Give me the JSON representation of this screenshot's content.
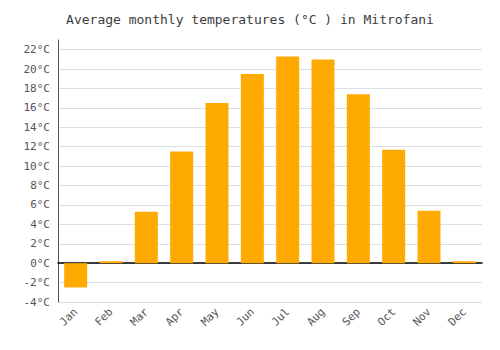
{
  "chart_data": {
    "type": "bar",
    "title": "Average monthly temperatures (°C ) in Mitrofani",
    "categories": [
      "Jan",
      "Feb",
      "Mar",
      "Apr",
      "May",
      "Jun",
      "Jul",
      "Aug",
      "Sep",
      "Oct",
      "Nov",
      "Dec"
    ],
    "values": [
      -2.5,
      0.2,
      5.3,
      11.5,
      16.5,
      19.5,
      21.3,
      21.0,
      17.4,
      11.7,
      5.4,
      0.2
    ],
    "color": "#FFAA00",
    "ylim": [
      -4,
      23
    ],
    "yticks": [
      {
        "value": -4,
        "label": "-4°C"
      },
      {
        "value": -2,
        "label": "-2°C"
      },
      {
        "value": 0,
        "label": "0°C"
      },
      {
        "value": 2,
        "label": "2°C"
      },
      {
        "value": 4,
        "label": "4°C"
      },
      {
        "value": 6,
        "label": "6°C"
      },
      {
        "value": 8,
        "label": "8°C"
      },
      {
        "value": 10,
        "label": "10°C"
      },
      {
        "value": 12,
        "label": "12°C"
      },
      {
        "value": 14,
        "label": "14°C"
      },
      {
        "value": 16,
        "label": "16°C"
      },
      {
        "value": 18,
        "label": "18°C"
      },
      {
        "value": 20,
        "label": "20°C"
      },
      {
        "value": 22,
        "label": "22°C"
      }
    ],
    "grid": true
  }
}
